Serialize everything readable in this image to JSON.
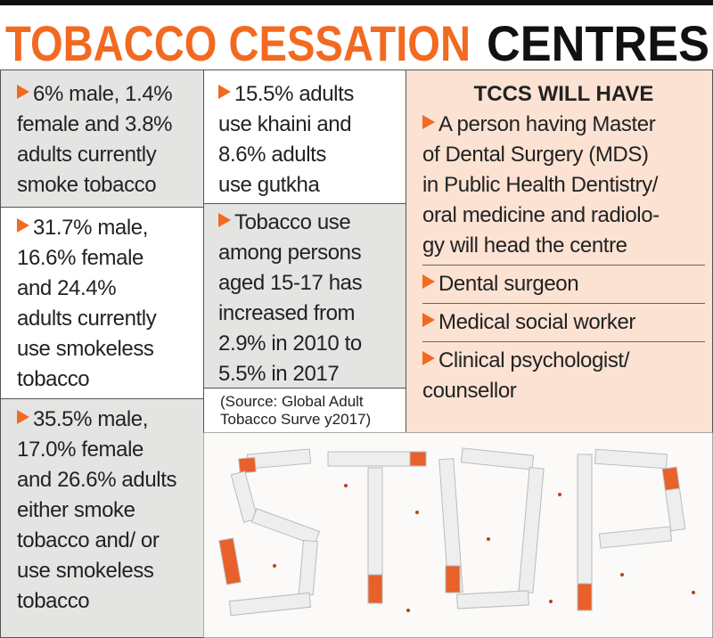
{
  "header": {
    "title_part1": "TOBACCO CESSATION",
    "title_part2": "CENTRES"
  },
  "facts_left": [
    {
      "lines": [
        "6% male, 1.4%",
        "female and 3.8%",
        "adults currently",
        "smoke tobacco"
      ]
    },
    {
      "lines": [
        "31.7% male,",
        "16.6% female",
        "and 24.4%",
        "adults currently",
        "use smokeless",
        "tobacco"
      ]
    },
    {
      "lines": [
        "35.5% male,",
        "17.0% female",
        "and 26.6% adults",
        "either smoke",
        "tobacco and/ or",
        "use smokeless",
        "tobacco"
      ]
    }
  ],
  "facts_middle": [
    {
      "lines": [
        "15.5% adults",
        "use khaini and",
        "8.6% adults",
        "use gutkha"
      ]
    },
    {
      "lines": [
        "Tobacco use",
        "among persons",
        "aged 15-17 has",
        "increased from",
        "2.9% in 2010 to",
        "5.5% in 2017"
      ]
    }
  ],
  "source": {
    "lines": [
      "(Source: Global Adult",
      "Tobacco Surve y2017)"
    ]
  },
  "tccs": {
    "heading": "TCCS WILL HAVE",
    "items": [
      {
        "lines": [
          "A person having Master",
          "of Dental Surgery (MDS)",
          "in Public Health Dentistry/",
          "oral medicine and radiolo-",
          "gy will head the centre"
        ]
      },
      {
        "lines": [
          "Dental surgeon"
        ]
      },
      {
        "lines": [
          "Medical social worker"
        ]
      },
      {
        "lines": [
          "Clinical psychologist/",
          "counsellor"
        ]
      }
    ]
  }
}
